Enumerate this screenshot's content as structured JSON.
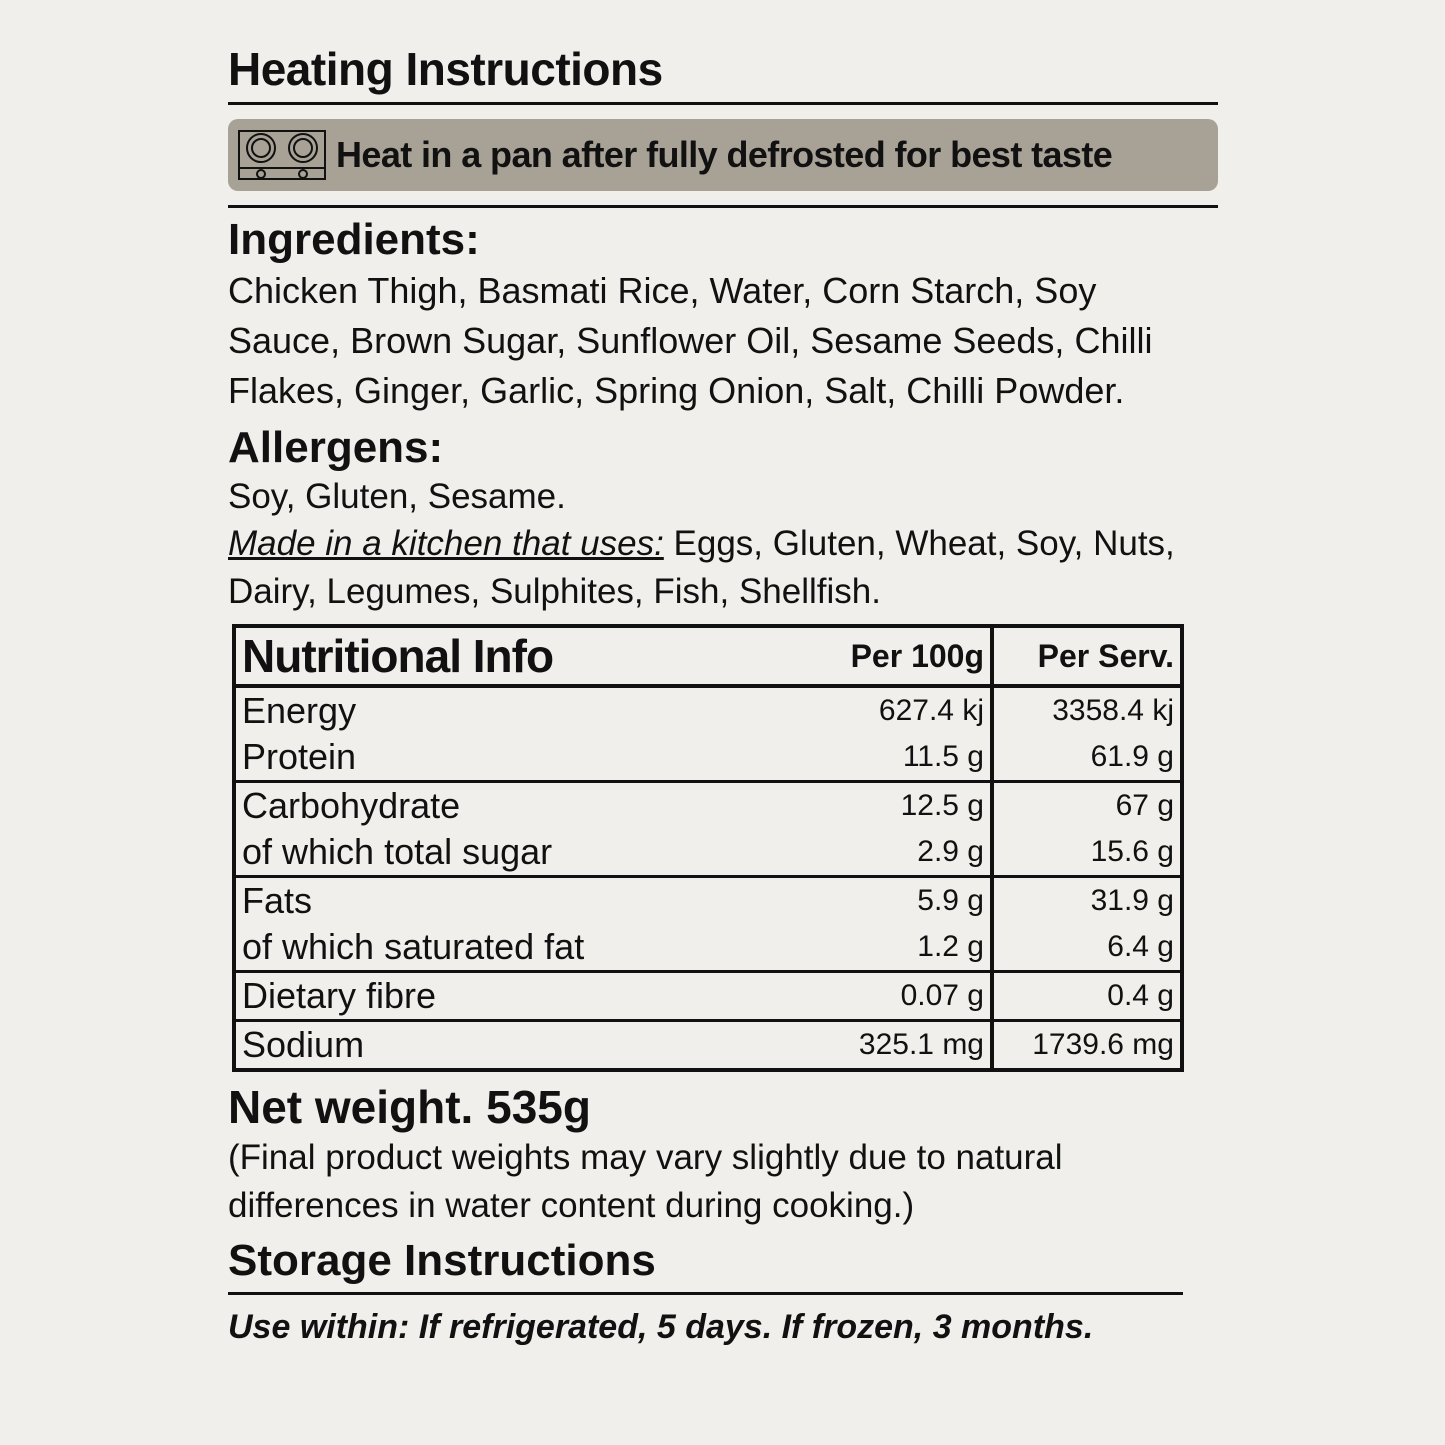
{
  "heating": {
    "title": "Heating Instructions",
    "icon": "stove-icon",
    "instruction": "Heat in a pan after fully defrosted for best taste"
  },
  "ingredients": {
    "title": "Ingredients:",
    "text": "Chicken Thigh, Basmati Rice, Water, Corn Starch, Soy Sauce, Brown Sugar, Sunflower Oil, Sesame Seeds, Chilli Flakes, Ginger, Garlic, Spring Onion, Salt, Chilli Powder."
  },
  "allergens": {
    "title": "Allergens:",
    "text": "Soy, Gluten, Sesame.",
    "kitchen_label": "Made in a kitchen that uses:",
    "kitchen_text": " Eggs, Gluten, Wheat, Soy, Nuts, Dairy, Legumes, Sulphites, Fish, Shellfish."
  },
  "nutrition": {
    "title": "Nutritional Info",
    "col_per100": "Per 100g",
    "col_serv": "Per Serv.",
    "groups": [
      [
        {
          "name": "Energy",
          "per100": "627.4 kj",
          "serv": "3358.4 kj"
        },
        {
          "name": "Protein",
          "per100": "11.5 g",
          "serv": "61.9 g"
        }
      ],
      [
        {
          "name": "Carbohydrate",
          "per100": "12.5 g",
          "serv": "67 g"
        },
        {
          "name": "of which total sugar",
          "per100": "2.9 g",
          "serv": "15.6 g"
        }
      ],
      [
        {
          "name": "Fats",
          "per100": "5.9 g",
          "serv": "31.9 g"
        },
        {
          "name": "of which saturated fat",
          "per100": "1.2 g",
          "serv": "6.4 g"
        }
      ],
      [
        {
          "name": "Dietary fibre",
          "per100": "0.07 g",
          "serv": "0.4 g"
        }
      ],
      [
        {
          "name": "Sodium",
          "per100": "325.1 mg",
          "serv": "1739.6 mg"
        }
      ]
    ]
  },
  "net_weight": {
    "title": "Net weight. 535g",
    "note": "(Final product weights may vary slightly due to natural differences in water content during cooking.)"
  },
  "storage": {
    "title": "Storage Instructions",
    "text": "Use within: If refrigerated, 5 days. If frozen, 3 months."
  }
}
